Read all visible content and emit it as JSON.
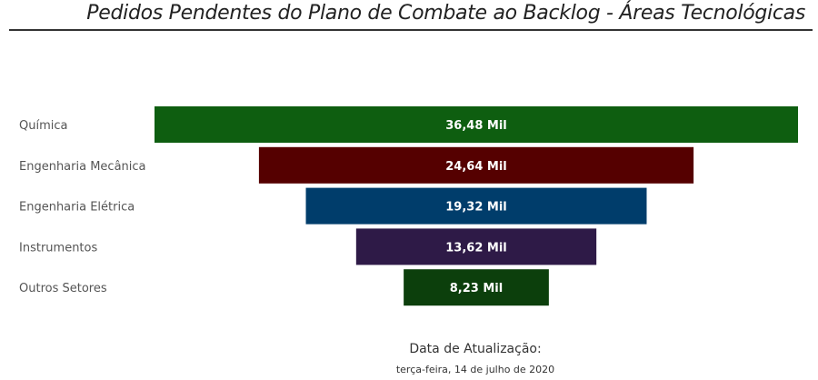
{
  "title": "Pedidos Pendentes do Plano de Combate ao Backlog - Áreas Tecnológicas",
  "update": {
    "label": "Data de Atualização:",
    "date": "terça-feira, 14 de julho de 2020"
  },
  "chart_data": {
    "type": "funnel",
    "categories": [
      "Química",
      "Engenharia Mecânica",
      "Engenharia Elétrica",
      "Instrumentos",
      "Outros Setores"
    ],
    "values": [
      36.48,
      24.64,
      19.32,
      13.62,
      8.23
    ],
    "data_labels": [
      "36,48 Mil",
      "24,64 Mil",
      "19,32 Mil",
      "13,62 Mil",
      "8,23 Mil"
    ],
    "colors": [
      "#0e5e10",
      "#550000",
      "#003d6b",
      "#2e1a47",
      "#0c3f0c"
    ]
  }
}
